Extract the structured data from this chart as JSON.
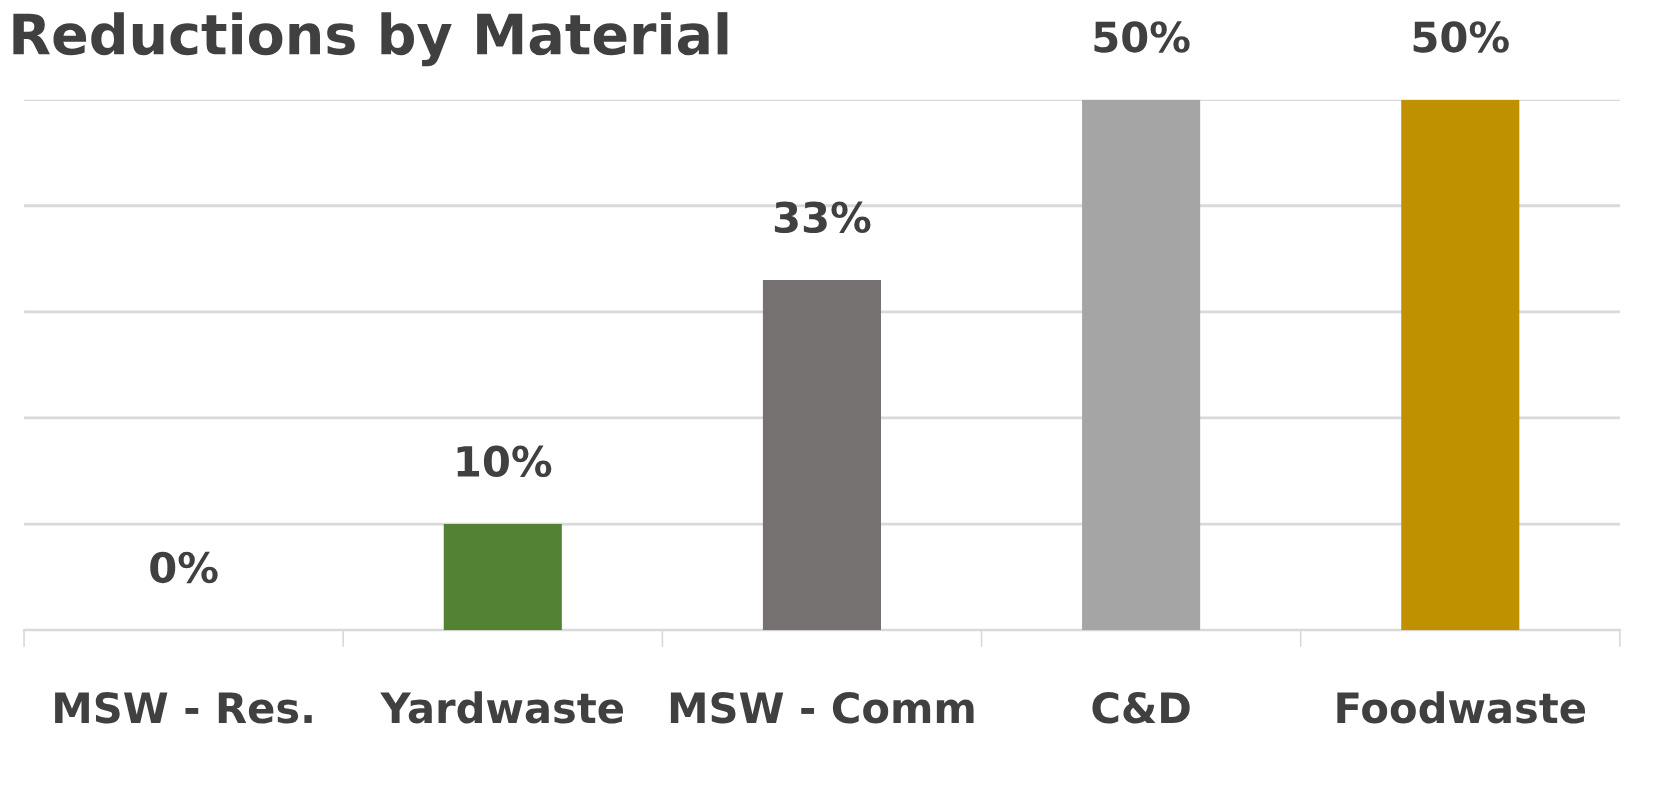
{
  "chart_data": {
    "type": "bar",
    "title": "Reductions by Material",
    "categories": [
      "MSW - Res.",
      "Yardwaste",
      "MSW - Comm",
      "C&D",
      "Foodwaste"
    ],
    "values": [
      0,
      10,
      33,
      50,
      50
    ],
    "colors": [
      "#4472c4",
      "#548235",
      "#767171",
      "#a5a5a5",
      "#bf9000"
    ],
    "value_labels": [
      "0%",
      "10%",
      "33%",
      "50%",
      "50%"
    ],
    "ylim": [
      0,
      50
    ],
    "yticks": [
      {
        "value": 0,
        "label": null
      },
      {
        "value": 10,
        "label": null
      },
      {
        "value": 20,
        "label": null
      },
      {
        "value": 30,
        "label": null
      },
      {
        "value": 40,
        "label": null
      },
      {
        "value": 50,
        "label": null
      }
    ],
    "grid": "y",
    "tick_labels": "x"
  }
}
